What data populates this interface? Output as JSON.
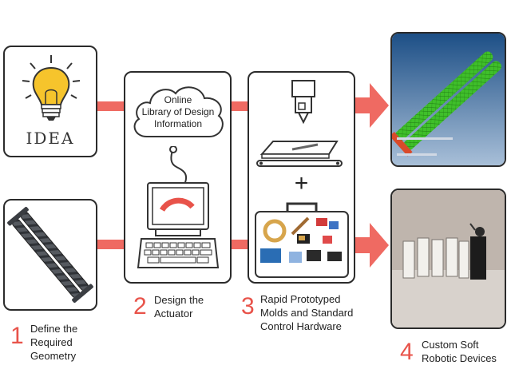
{
  "idea_panel": {
    "idea_text": "IDEA"
  },
  "cloud": {
    "line1": "Online",
    "line2": "Library of Design",
    "line3": "Information"
  },
  "steps": [
    {
      "number": "1",
      "line1": "Define the",
      "line2": "Required",
      "line3": "Geometry"
    },
    {
      "number": "2",
      "line1": "Design the",
      "line2": "Actuator"
    },
    {
      "number": "3",
      "line1": "Rapid Prototyped",
      "line2": "Molds and Standard",
      "line3": "Control Hardware"
    },
    {
      "number": "4",
      "line1": "Custom Soft",
      "line2": "Robotic Devices"
    }
  ],
  "plus_sign": "+",
  "colors": {
    "arrow": "#ef6a62",
    "number": "#e8534a",
    "border": "#2b2b2b",
    "sim_green": "#3fbf2a",
    "sim_bg": "#1d4f86"
  },
  "icons": [
    "lightbulb-icon",
    "cloud-icon",
    "computer-icon",
    "3d-printer-icon",
    "toolbox-icon",
    "arrow-icon"
  ]
}
